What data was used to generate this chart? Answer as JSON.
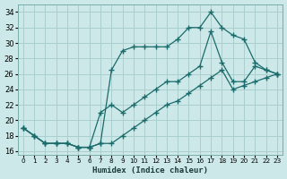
{
  "background_color": "#cde8e8",
  "grid_color": "#aacece",
  "line_color": "#1a6b6b",
  "xlabel": "Humidex (Indice chaleur)",
  "ylim": [
    15.5,
    35
  ],
  "xlim": [
    -0.5,
    23.5
  ],
  "yticks": [
    16,
    18,
    20,
    22,
    24,
    26,
    28,
    30,
    32,
    34
  ],
  "xticks": [
    0,
    1,
    2,
    3,
    4,
    5,
    6,
    7,
    8,
    9,
    10,
    11,
    12,
    13,
    14,
    15,
    16,
    17,
    18,
    19,
    20,
    21,
    22,
    23
  ],
  "line1_x": [
    0,
    1,
    2,
    3,
    4,
    5,
    6,
    7,
    8,
    9,
    10,
    11,
    12,
    13,
    14,
    15,
    16,
    17,
    18,
    19,
    20,
    21,
    22,
    23
  ],
  "line1_y": [
    19,
    18,
    17,
    17,
    17,
    16.5,
    16.5,
    17,
    26.5,
    29,
    29.5,
    29.5,
    29.5,
    29.5,
    30.5,
    32,
    32,
    34,
    32,
    31,
    30.5,
    27.5,
    26.5,
    26
  ],
  "line2_x": [
    0,
    1,
    2,
    3,
    4,
    5,
    6,
    7,
    8,
    9,
    10,
    11,
    12,
    13,
    14,
    15,
    16,
    17,
    18,
    19,
    20,
    21,
    22,
    23
  ],
  "line2_y": [
    19,
    18,
    17,
    17,
    17,
    16.5,
    16.5,
    21,
    22,
    21,
    22,
    23,
    24,
    25,
    25,
    26,
    27,
    31.5,
    27.5,
    25,
    25,
    27,
    26.5,
    26
  ],
  "line3_x": [
    0,
    1,
    2,
    3,
    4,
    5,
    6,
    7,
    8,
    9,
    10,
    11,
    12,
    13,
    14,
    15,
    16,
    17,
    18,
    19,
    20,
    21,
    22,
    23
  ],
  "line3_y": [
    19,
    18,
    17,
    17,
    17,
    16.5,
    16.5,
    17,
    17,
    18,
    19,
    20,
    21,
    22,
    22.5,
    23.5,
    24.5,
    25.5,
    26.5,
    24,
    24.5,
    25,
    25.5,
    26
  ]
}
